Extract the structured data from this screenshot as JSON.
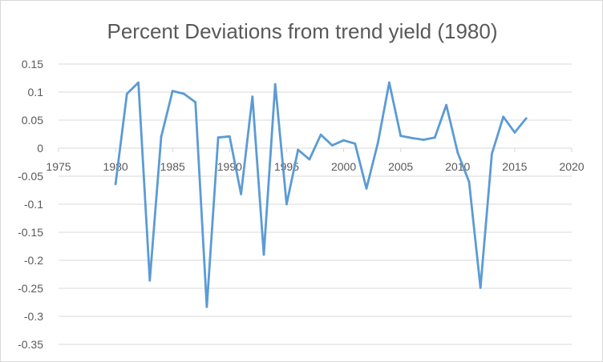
{
  "chart_data": {
    "type": "line",
    "title": "Percent Deviations from trend yield (1980)",
    "xlabel": "",
    "ylabel": "",
    "xlim": [
      1975,
      2020
    ],
    "ylim": [
      -0.35,
      0.15
    ],
    "x_ticks": [
      "1975",
      "1980",
      "1985",
      "1990",
      "1995",
      "2000",
      "2005",
      "2010",
      "2015",
      "2020"
    ],
    "y_ticks": [
      "0.15",
      "0.1",
      "0.05",
      "0",
      "-0.05",
      "-0.1",
      "-0.15",
      "-0.2",
      "-0.25",
      "-0.3",
      "-0.35"
    ],
    "grid": "horizontal",
    "legend": "none",
    "line_color": "#5b9bd5",
    "grid_color": "#d9d9d9",
    "series": [
      {
        "x": [
          1980,
          1981,
          1982,
          1983,
          1984,
          1985,
          1986,
          1987,
          1988,
          1989,
          1990,
          1991,
          1992,
          1993,
          1994,
          1995,
          1996,
          1997,
          1998,
          1999,
          2000,
          2001,
          2002,
          2003,
          2004,
          2005,
          2006,
          2007,
          2008,
          2009,
          2010,
          2011,
          2012,
          2013,
          2014,
          2015,
          2016
        ],
        "values": [
          -0.064,
          0.097,
          0.117,
          -0.236,
          0.02,
          0.102,
          0.097,
          0.082,
          -0.283,
          0.019,
          0.021,
          -0.082,
          0.092,
          -0.19,
          0.114,
          -0.1,
          -0.003,
          -0.02,
          0.024,
          0.005,
          0.014,
          0.008,
          -0.072,
          0.009,
          0.117,
          0.022,
          0.018,
          0.015,
          0.019,
          0.077,
          -0.008,
          -0.06,
          -0.249,
          -0.01,
          0.056,
          0.028,
          0.053
        ]
      }
    ]
  }
}
